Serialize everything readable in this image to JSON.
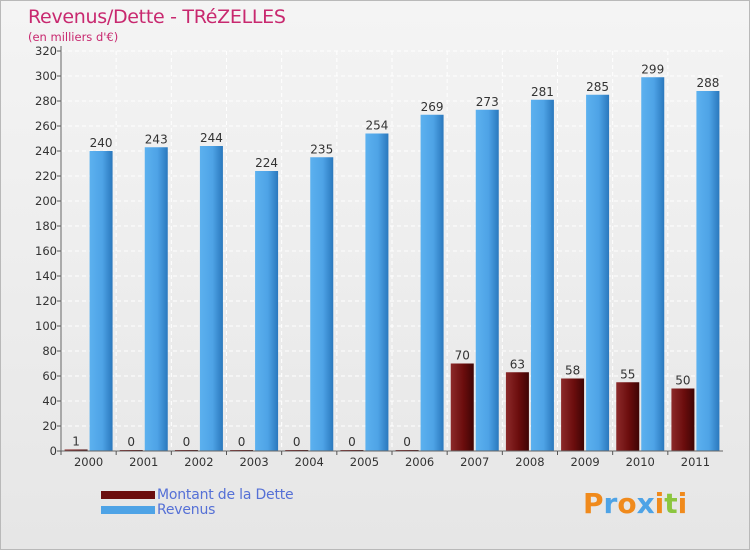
{
  "header": {
    "title": "Revenus/Dette - TRéZELLES",
    "subtitle": "(en milliers d'€)"
  },
  "chart_data": {
    "type": "bar",
    "categories": [
      "2000",
      "2001",
      "2002",
      "2003",
      "2004",
      "2005",
      "2006",
      "2007",
      "2008",
      "2009",
      "2010",
      "2011"
    ],
    "series": [
      {
        "name": "Montant de la Dette",
        "color": "#6b0d0d",
        "values": [
          1,
          0,
          0,
          0,
          0,
          0,
          0,
          70,
          63,
          58,
          55,
          50
        ]
      },
      {
        "name": "Revenus",
        "color": "#4ea3e6",
        "values": [
          240,
          243,
          244,
          224,
          235,
          254,
          269,
          273,
          281,
          285,
          299,
          288
        ]
      }
    ],
    "ylim": [
      0,
      320
    ],
    "yticks": [
      0,
      20,
      40,
      60,
      80,
      100,
      120,
      140,
      160,
      180,
      200,
      220,
      240,
      260,
      280,
      300,
      320
    ],
    "grid": true,
    "legend_position": "bottom-left"
  },
  "legend": {
    "items": [
      {
        "label": "Montant de la Dette",
        "color": "#6b0d0d"
      },
      {
        "label": "Revenus",
        "color": "#4ea3e6"
      }
    ]
  },
  "logo": {
    "text": "Proxiti",
    "letter_colors": [
      "#f08a1c",
      "#4ea3e6",
      "#f08a1c",
      "#4ea3e6",
      "#f08a1c",
      "#8cc63f",
      "#f08a1c"
    ]
  }
}
